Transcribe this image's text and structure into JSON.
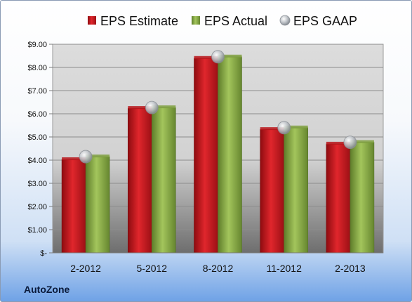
{
  "company_label": "AutoZone",
  "colors": {
    "estimate": "#c8161c",
    "actual": "#8db04a",
    "gaap": "#b9bec4"
  },
  "chart_data": {
    "type": "bar",
    "categories": [
      "2-2012",
      "5-2012",
      "8-2012",
      "11-2012",
      "2-2013"
    ],
    "series": [
      {
        "name": "EPS Estimate",
        "values": [
          4.03,
          6.24,
          8.4,
          5.33,
          4.7
        ],
        "style": "bar"
      },
      {
        "name": "EPS Actual",
        "values": [
          4.15,
          6.27,
          8.46,
          5.4,
          4.77
        ],
        "style": "bar"
      },
      {
        "name": "EPS GAAP",
        "values": [
          4.15,
          6.27,
          8.46,
          5.4,
          4.77
        ],
        "style": "marker"
      }
    ],
    "y_ticks": [
      "$-",
      "$1.00",
      "$2.00",
      "$3.00",
      "$4.00",
      "$5.00",
      "$6.00",
      "$7.00",
      "$8.00",
      "$9.00"
    ],
    "ylim": [
      0,
      9
    ],
    "grid": true,
    "legend_position": "top"
  }
}
